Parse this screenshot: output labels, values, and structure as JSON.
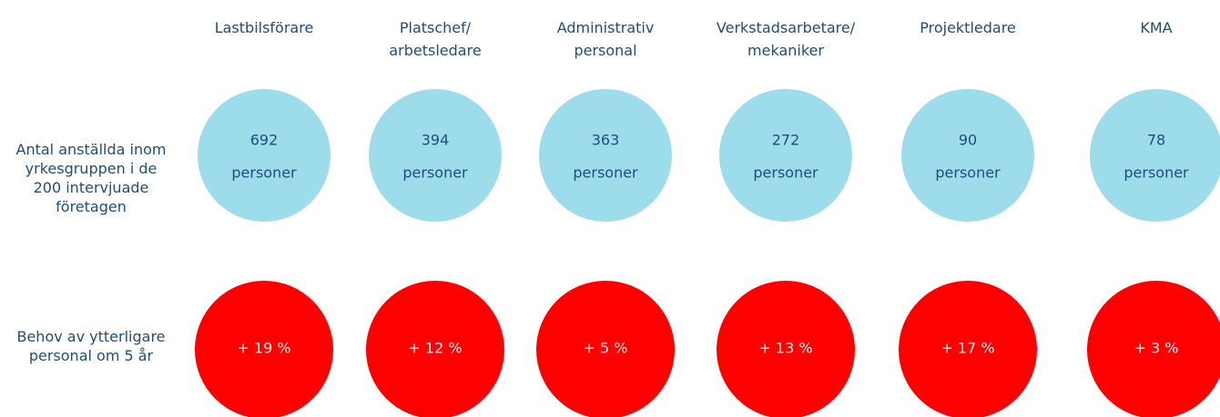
{
  "rows": [
    "Antal anställda inom\nyrkesgruppen i de\n200 intervjuade\nföretagen",
    "Behov av ytterligare\npersonal om 5 år"
  ],
  "columns": [
    {
      "header": "Lastbilsförare",
      "count": 692,
      "unit": "personer",
      "growth": "+ 19 %"
    },
    {
      "header": "Platschef/\narbetsledare",
      "count": 394,
      "unit": "personer",
      "growth": "+ 12 %"
    },
    {
      "header": "Administrativ\npersonal",
      "count": 363,
      "unit": "personer",
      "growth": "+ 5 %"
    },
    {
      "header": "Verkstadsarbetare/\nmekaniker",
      "count": 272,
      "unit": "personer",
      "growth": "+ 13 %"
    },
    {
      "header": "Projektledare",
      "count": 90,
      "unit": "personer",
      "growth": "+ 17 %"
    },
    {
      "header": "KMA",
      "count": 78,
      "unit": "personer",
      "growth": "+ 3 %"
    }
  ]
}
